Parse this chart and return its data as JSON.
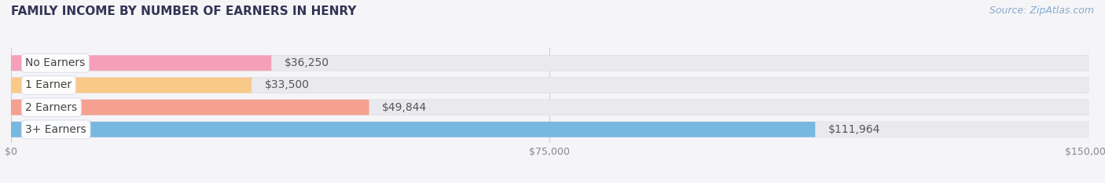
{
  "title": "FAMILY INCOME BY NUMBER OF EARNERS IN HENRY",
  "source": "Source: ZipAtlas.com",
  "categories": [
    "No Earners",
    "1 Earner",
    "2 Earners",
    "3+ Earners"
  ],
  "values": [
    36250,
    33500,
    49844,
    111964
  ],
  "bar_colors": [
    "#f5a0b8",
    "#f9c98a",
    "#f5a090",
    "#78b8e0"
  ],
  "track_color": "#eaeaee",
  "xlim": [
    0,
    150000
  ],
  "xticks": [
    0,
    75000,
    150000
  ],
  "xtick_labels": [
    "$0",
    "$75,000",
    "$150,000"
  ],
  "value_labels": [
    "$36,250",
    "$33,500",
    "$49,844",
    "$111,964"
  ],
  "label_fontsize": 10,
  "title_fontsize": 11,
  "source_fontsize": 9,
  "bar_height": 0.7,
  "background": "#f5f5f8",
  "title_color": "#333355",
  "source_color": "#88aacc",
  "tick_color": "#888888",
  "gridline_color": "#ccccdd",
  "label_text_color": "#444444",
  "value_text_color": "#555555"
}
